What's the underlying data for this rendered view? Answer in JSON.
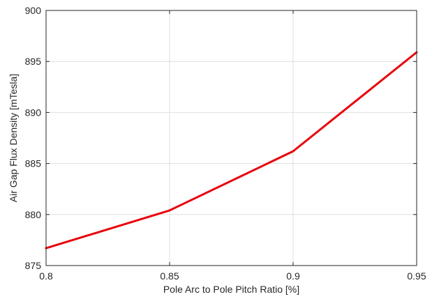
{
  "chart_data": {
    "type": "line",
    "title": "",
    "xlabel": "Pole Arc to Pole Pitch Ratio [%]",
    "ylabel": "Air Gap Flux Density [mTesla]",
    "xlim": [
      0.8,
      0.95
    ],
    "ylim": [
      875,
      900
    ],
    "xticks": [
      0.8,
      0.85,
      0.9,
      0.95
    ],
    "xtick_labels": [
      "0.8",
      "0.85",
      "0.9",
      "0.95"
    ],
    "yticks": [
      875,
      880,
      885,
      890,
      895,
      900
    ],
    "ytick_labels": [
      "875",
      "880",
      "885",
      "890",
      "895",
      "900"
    ],
    "grid": true,
    "legend": "none",
    "series": [
      {
        "color": "#e8000b",
        "x": [
          0.8,
          0.85,
          0.9,
          0.95
        ],
        "y": [
          876.7,
          880.4,
          886.2,
          895.9
        ]
      }
    ]
  }
}
